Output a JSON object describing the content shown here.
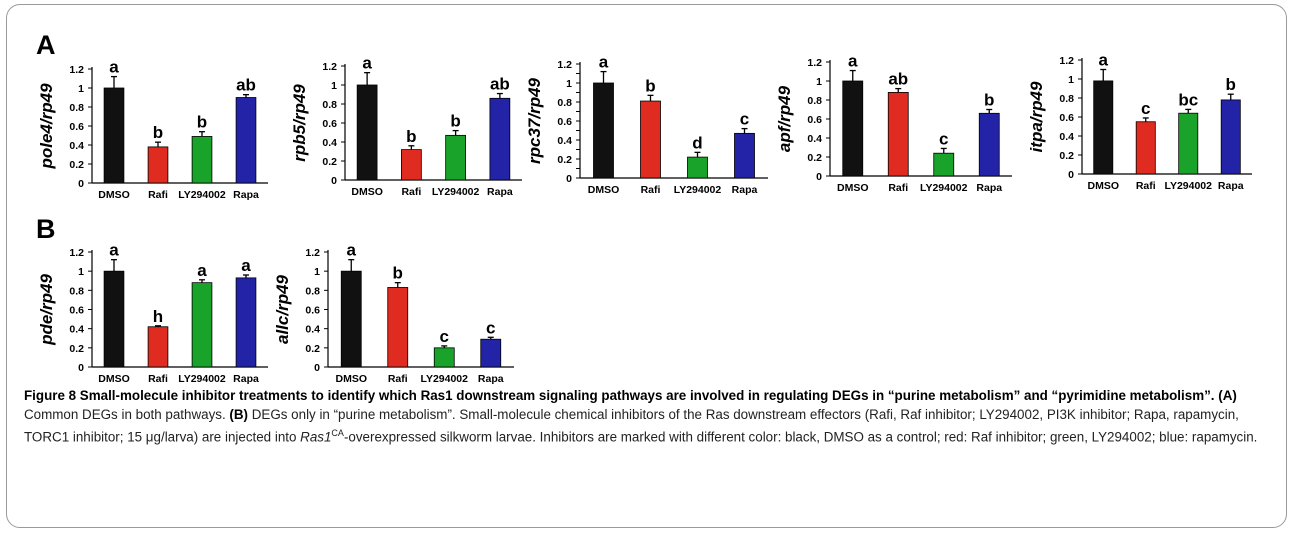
{
  "panels": [
    {
      "label": "A"
    },
    {
      "label": "B"
    }
  ],
  "chart_data": [
    {
      "type": "bar",
      "panel": "A",
      "ylabel": "pole4/rp49",
      "categories": [
        "DMSO",
        "Rafi",
        "LY294002",
        "Rapa"
      ],
      "values": [
        1.0,
        0.38,
        0.49,
        0.9
      ],
      "errors": [
        0.12,
        0.05,
        0.05,
        0.03
      ],
      "letters": [
        "a",
        "b",
        "b",
        "ab"
      ],
      "colors": [
        "#111111",
        "#e02b20",
        "#1aa32a",
        "#2323a8"
      ],
      "ylim": [
        0,
        1.2
      ],
      "yticks": [
        "0",
        "0.2",
        "0.4",
        "0.6",
        "0.8",
        "1",
        "1.2"
      ]
    },
    {
      "type": "bar",
      "panel": "A",
      "ylabel": "rpb5/rp49",
      "categories": [
        "DMSO",
        "Rafi",
        "LY294002",
        "Rapa"
      ],
      "values": [
        1.0,
        0.32,
        0.47,
        0.86
      ],
      "errors": [
        0.13,
        0.04,
        0.05,
        0.05
      ],
      "letters": [
        "a",
        "b",
        "b",
        "ab"
      ],
      "colors": [
        "#111111",
        "#e02b20",
        "#1aa32a",
        "#2323a8"
      ],
      "ylim": [
        0,
        1.2
      ],
      "yticks": [
        "0",
        "0.2",
        "0.4",
        "0.6",
        "0.8",
        "1",
        "1.2"
      ]
    },
    {
      "type": "bar",
      "panel": "A",
      "ylabel": "rpc37/rp49",
      "categories": [
        "DMSO",
        "Rafi",
        "LY294002",
        "Rapa"
      ],
      "values": [
        1.0,
        0.81,
        0.22,
        0.47
      ],
      "errors": [
        0.12,
        0.06,
        0.05,
        0.05
      ],
      "letters": [
        "a",
        "b",
        "d",
        "c"
      ],
      "colors": [
        "#111111",
        "#e02b20",
        "#1aa32a",
        "#2323a8"
      ],
      "ylim": [
        0,
        1.2
      ],
      "yticks": [
        "0",
        "0.1",
        "0.2",
        "0.3",
        "0.4",
        "0.5",
        "0.6",
        "0.7",
        "0.8",
        "0.9",
        "1",
        "1.1",
        "1.2"
      ]
    },
    {
      "type": "bar",
      "panel": "A",
      "ylabel": "apf/rp49",
      "categories": [
        "DMSO",
        "Rafi",
        "LY294002",
        "Rapa"
      ],
      "values": [
        1.0,
        0.88,
        0.24,
        0.66
      ],
      "errors": [
        0.11,
        0.04,
        0.05,
        0.04
      ],
      "letters": [
        "a",
        "ab",
        "c",
        "b"
      ],
      "colors": [
        "#111111",
        "#e02b20",
        "#1aa32a",
        "#2323a8"
      ],
      "ylim": [
        0,
        1.2
      ],
      "yticks": [
        "0",
        "0.2",
        "0.4",
        "0.6",
        "0.8",
        "1",
        "1.2"
      ]
    },
    {
      "type": "bar",
      "panel": "A",
      "ylabel": "itpa/rp49",
      "categories": [
        "DMSO",
        "Rafi",
        "LY294002",
        "Rapa"
      ],
      "values": [
        0.98,
        0.55,
        0.64,
        0.78
      ],
      "errors": [
        0.12,
        0.04,
        0.04,
        0.06
      ],
      "letters": [
        "a",
        "c",
        "bc",
        "b"
      ],
      "colors": [
        "#111111",
        "#e02b20",
        "#1aa32a",
        "#2323a8"
      ],
      "ylim": [
        0,
        1.2
      ],
      "yticks": [
        "0",
        "0.2",
        "0.4",
        "0.6",
        "0.8",
        "1",
        "1.2"
      ]
    },
    {
      "type": "bar",
      "panel": "B",
      "ylabel": "pde/rp49",
      "categories": [
        "DMSO",
        "Rafi",
        "LY294002",
        "Rapa"
      ],
      "values": [
        1.0,
        0.42,
        0.88,
        0.93
      ],
      "errors": [
        0.12,
        0.01,
        0.03,
        0.03
      ],
      "letters": [
        "a",
        "h",
        "a",
        "a"
      ],
      "colors": [
        "#111111",
        "#e02b20",
        "#1aa32a",
        "#2323a8"
      ],
      "ylim": [
        0,
        1.2
      ],
      "yticks": [
        "0",
        "0.2",
        "0.4",
        "0.6",
        "0.8",
        "1",
        "1.2"
      ]
    },
    {
      "type": "bar",
      "panel": "B",
      "ylabel": "allc/rp49",
      "categories": [
        "DMSO",
        "Rafi",
        "LY294002",
        "Rapa"
      ],
      "values": [
        1.0,
        0.83,
        0.2,
        0.29
      ],
      "errors": [
        0.12,
        0.05,
        0.02,
        0.02
      ],
      "letters": [
        "a",
        "b",
        "c",
        "c"
      ],
      "colors": [
        "#111111",
        "#e02b20",
        "#1aa32a",
        "#2323a8"
      ],
      "ylim": [
        0,
        1.2
      ],
      "yticks": [
        "0",
        "0.2",
        "0.4",
        "0.6",
        "0.8",
        "1",
        "1.2"
      ]
    }
  ],
  "caption": {
    "title": "Figure 8 Small-molecule inhibitor treatments to identify which Ras1 downstream signaling pathways are involved in regulating DEGs in “purine metabolism” and “pyrimidine metabolism”.",
    "part_a_label": "(A)",
    "part_a_text": " Common DEGs in both pathways. ",
    "part_b_label": "(B)",
    "part_b_text": " DEGs only in “purine metabolism”. Small-molecule chemical inhibitors of the Ras downstream effectors (Rafi, Raf inhibitor; LY294002, PI3K inhibitor; Rapa, rapamycin, TORC1 inhibitor; 15 μg/larva) are injected into ",
    "gene": "Ras1",
    "gene_sup": "CA",
    "rest": "-overexpressed silkworm larvae. Inhibitors are marked with different color: black, DMSO as a control; red: Raf inhibitor; green, LY294002; blue: rapamycin."
  }
}
